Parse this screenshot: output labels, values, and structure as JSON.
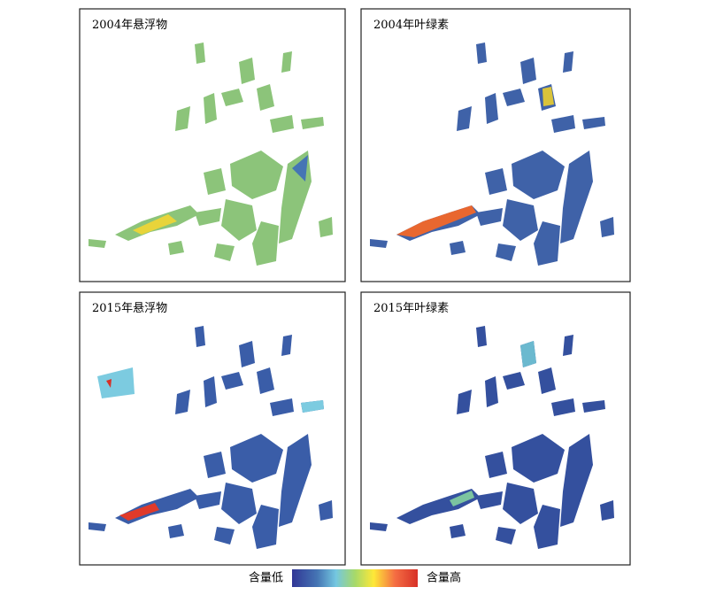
{
  "panels": [
    {
      "title": "2004年悬浮物"
    },
    {
      "title": "2004年叶绿素"
    },
    {
      "title": "2015年悬浮物"
    },
    {
      "title": "2015年叶绿素"
    }
  ],
  "legend": {
    "low": "含量低",
    "high": "含量高"
  }
}
